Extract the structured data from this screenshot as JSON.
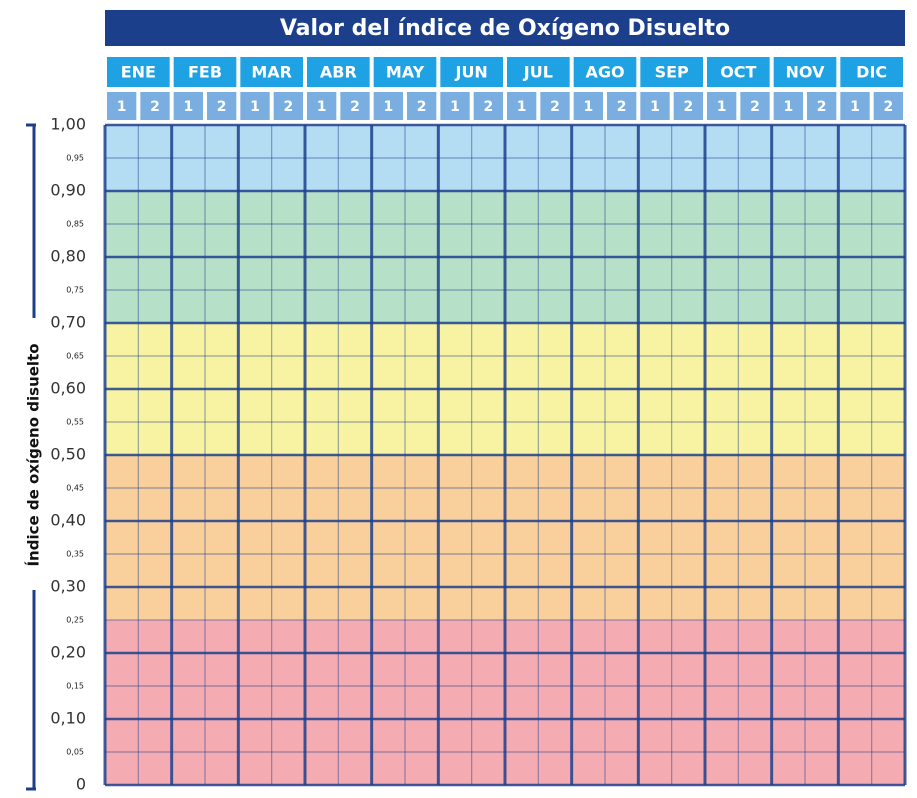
{
  "chart_data": {
    "type": "grid",
    "title": "Valor del índice de Oxígeno Disuelto",
    "categories": [
      "ENE",
      "FEB",
      "MAR",
      "ABR",
      "MAY",
      "JUN",
      "JUL",
      "AGO",
      "SEP",
      "OCT",
      "NOV",
      "DIC"
    ],
    "subcategories": [
      "1",
      "2"
    ],
    "ylabel": "Índice de oxígeno disuelto",
    "ylim": [
      0,
      1
    ],
    "yticks": [
      0,
      {
        "value": 0.05,
        "label": "0,05"
      },
      {
        "value": 0.1,
        "label": "0,10"
      },
      {
        "value": 0.15,
        "label": "0,15"
      },
      {
        "value": 0.2,
        "label": "0,20"
      },
      {
        "value": 0.25,
        "label": "0,25"
      },
      {
        "value": 0.3,
        "label": "0,30"
      },
      {
        "value": 0.35,
        "label": "0,35"
      },
      {
        "value": 0.4,
        "label": "0,40"
      },
      {
        "value": 0.45,
        "label": "0,45"
      },
      {
        "value": 0.5,
        "label": "0,50"
      },
      {
        "value": 0.55,
        "label": "0,55"
      },
      {
        "value": 0.6,
        "label": "0,60"
      },
      {
        "value": 0.65,
        "label": "0,65"
      },
      {
        "value": 0.7,
        "label": "0,70"
      },
      {
        "value": 0.75,
        "label": "0,75"
      },
      {
        "value": 0.8,
        "label": "0,80"
      },
      {
        "value": 0.85,
        "label": "0,85"
      },
      {
        "value": 0.9,
        "label": "0,90"
      },
      {
        "value": 0.95,
        "label": "0,95"
      },
      {
        "value": 1,
        "label": "1,00"
      }
    ],
    "bands": [
      {
        "from": 0.9,
        "to": 1,
        "color": "#b4ddf3"
      },
      {
        "from": 0.7,
        "to": 0.9,
        "color": "#b6e0c7"
      },
      {
        "from": 0.5,
        "to": 0.7,
        "color": "#f8f3a3"
      },
      {
        "from": 0.25,
        "to": 0.5,
        "color": "#f9d09c"
      },
      {
        "from": 0,
        "to": 0.25,
        "color": "#f4abb2"
      }
    ],
    "grid": true
  }
}
